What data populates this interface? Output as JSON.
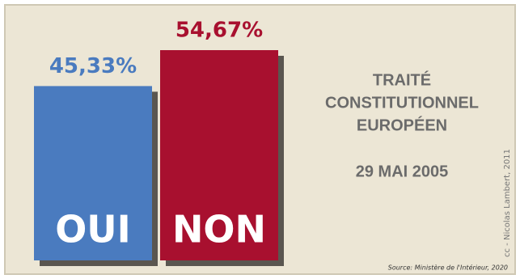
{
  "chart_data": {
    "type": "bar",
    "title": [
      "TRAITÉ",
      "CONSTITUTIONNEL",
      "EUROPÉEN"
    ],
    "subtitle": "29 MAI 2005",
    "source": "Source: Ministère de l'Intérieur, 2020",
    "credit": "cc - Nicolas Lambert, 2011",
    "categories": [
      "OUI",
      "NON"
    ],
    "values": [
      45.33,
      54.67
    ],
    "value_labels": [
      "45,33%",
      "54,67%"
    ],
    "colors": [
      "#4a7bbf",
      "#a8102f"
    ]
  }
}
